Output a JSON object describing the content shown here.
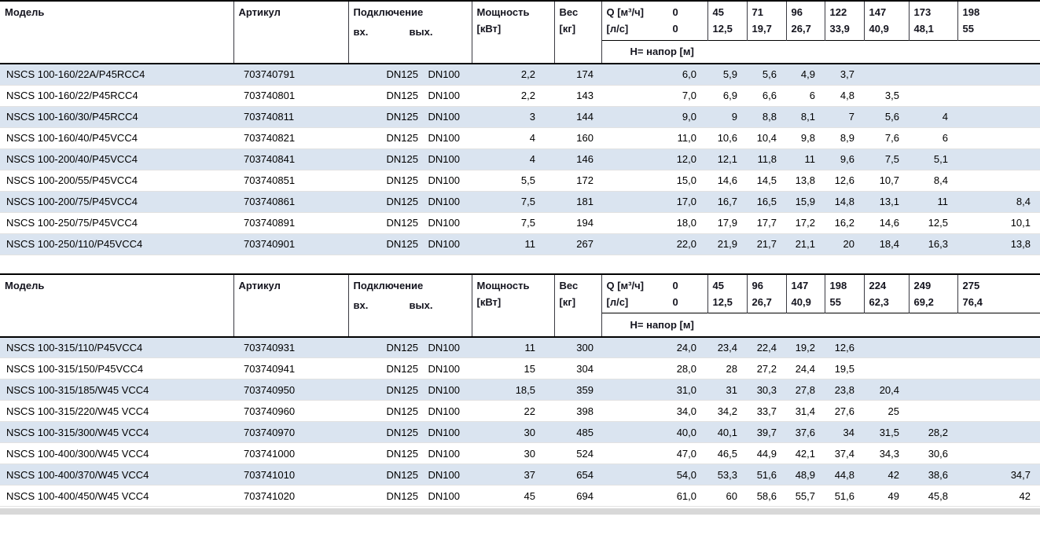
{
  "page": {
    "background": "#ffffff",
    "stripe_color": "#dae4f0"
  },
  "tables": [
    {
      "headers": {
        "model": "Модель",
        "article": "Артикул",
        "connection": "Подключение",
        "conn_in": "вх.",
        "conn_out": "вых.",
        "power": "Мощность",
        "power_unit": "[кВт]",
        "weight": "Вес",
        "weight_unit": "[кг]",
        "q_m3h": "Q [м³/ч]",
        "q_zero_m3h": "0",
        "q_ls": "[л/с]",
        "q_zero_ls": "0",
        "head_label": "Н= напор [м]"
      },
      "flow_m3h": [
        "45",
        "71",
        "96",
        "122",
        "147",
        "173",
        "198"
      ],
      "flow_ls": [
        "12,5",
        "19,7",
        "26,7",
        "33,9",
        "40,9",
        "48,1",
        "55"
      ],
      "rows": [
        {
          "model": "NSCS 100-160/22A/P45RCC4",
          "article": "703740791",
          "in": "DN125",
          "out": "DN100",
          "power": "2,2",
          "weight": "174",
          "h": [
            "6,0",
            "5,9",
            "5,6",
            "4,9",
            "3,7",
            "",
            "",
            ""
          ]
        },
        {
          "model": "NSCS 100-160/22/P45RCC4",
          "article": "703740801",
          "in": "DN125",
          "out": "DN100",
          "power": "2,2",
          "weight": "143",
          "h": [
            "7,0",
            "6,9",
            "6,6",
            "6",
            "4,8",
            "3,5",
            "",
            ""
          ]
        },
        {
          "model": "NSCS 100-160/30/P45RCC4",
          "article": "703740811",
          "in": "DN125",
          "out": "DN100",
          "power": "3",
          "weight": "144",
          "h": [
            "9,0",
            "9",
            "8,8",
            "8,1",
            "7",
            "5,6",
            "4",
            ""
          ]
        },
        {
          "model": "NSCS 100-160/40/P45VCC4",
          "article": "703740821",
          "in": "DN125",
          "out": "DN100",
          "power": "4",
          "weight": "160",
          "h": [
            "11,0",
            "10,6",
            "10,4",
            "9,8",
            "8,9",
            "7,6",
            "6",
            ""
          ]
        },
        {
          "model": "NSCS 100-200/40/P45VCC4",
          "article": "703740841",
          "in": "DN125",
          "out": "DN100",
          "power": "4",
          "weight": "146",
          "h": [
            "12,0",
            "12,1",
            "11,8",
            "11",
            "9,6",
            "7,5",
            "5,1",
            ""
          ]
        },
        {
          "model": "NSCS 100-200/55/P45VCC4",
          "article": "703740851",
          "in": "DN125",
          "out": "DN100",
          "power": "5,5",
          "weight": "172",
          "h": [
            "15,0",
            "14,6",
            "14,5",
            "13,8",
            "12,6",
            "10,7",
            "8,4",
            ""
          ]
        },
        {
          "model": "NSCS 100-200/75/P45VCC4",
          "article": "703740861",
          "in": "DN125",
          "out": "DN100",
          "power": "7,5",
          "weight": "181",
          "h": [
            "17,0",
            "16,7",
            "16,5",
            "15,9",
            "14,8",
            "13,1",
            "11",
            "8,4"
          ]
        },
        {
          "model": "NSCS 100-250/75/P45VCC4",
          "article": "703740891",
          "in": "DN125",
          "out": "DN100",
          "power": "7,5",
          "weight": "194",
          "h": [
            "18,0",
            "17,9",
            "17,7",
            "17,2",
            "16,2",
            "14,6",
            "12,5",
            "10,1"
          ]
        },
        {
          "model": "NSCS 100-250/110/P45VCC4",
          "article": "703740901",
          "in": "DN125",
          "out": "DN100",
          "power": "11",
          "weight": "267",
          "h": [
            "22,0",
            "21,9",
            "21,7",
            "21,1",
            "20",
            "18,4",
            "16,3",
            "13,8"
          ]
        }
      ]
    },
    {
      "headers": {
        "model": "Модель",
        "article": "Артикул",
        "connection": "Подключение",
        "conn_in": "вх.",
        "conn_out": "вых.",
        "power": "Мощность",
        "power_unit": "[кВт]",
        "weight": "Вес",
        "weight_unit": "[кг]",
        "q_m3h": "Q [м³/ч]",
        "q_zero_m3h": "0",
        "q_ls": "[л/с]",
        "q_zero_ls": "0",
        "head_label": "Н= напор [м]"
      },
      "flow_m3h": [
        "45",
        "96",
        "147",
        "198",
        "224",
        "249",
        "275"
      ],
      "flow_ls": [
        "12,5",
        "26,7",
        "40,9",
        "55",
        "62,3",
        "69,2",
        "76,4"
      ],
      "rows": [
        {
          "model": "NSCS 100-315/110/P45VCC4",
          "article": "703740931",
          "in": "DN125",
          "out": "DN100",
          "power": "11",
          "weight": "300",
          "h": [
            "24,0",
            "23,4",
            "22,4",
            "19,2",
            "12,6",
            "",
            "",
            ""
          ]
        },
        {
          "model": "NSCS 100-315/150/P45VCC4",
          "article": "703740941",
          "in": "DN125",
          "out": "DN100",
          "power": "15",
          "weight": "304",
          "h": [
            "28,0",
            "28",
            "27,2",
            "24,4",
            "19,5",
            "",
            "",
            ""
          ]
        },
        {
          "model": "NSCS 100-315/185/W45 VCC4",
          "article": "703740950",
          "in": "DN125",
          "out": "DN100",
          "power": "18,5",
          "weight": "359",
          "h": [
            "31,0",
            "31",
            "30,3",
            "27,8",
            "23,8",
            "20,4",
            "",
            ""
          ]
        },
        {
          "model": "NSCS 100-315/220/W45 VCC4",
          "article": "703740960",
          "in": "DN125",
          "out": "DN100",
          "power": "22",
          "weight": "398",
          "h": [
            "34,0",
            "34,2",
            "33,7",
            "31,4",
            "27,6",
            "25",
            "",
            ""
          ]
        },
        {
          "model": "NSCS 100-315/300/W45 VCC4",
          "article": "703740970",
          "in": "DN125",
          "out": "DN100",
          "power": "30",
          "weight": "485",
          "h": [
            "40,0",
            "40,1",
            "39,7",
            "37,6",
            "34",
            "31,5",
            "28,2",
            ""
          ]
        },
        {
          "model": "NSCS 100-400/300/W45 VCC4",
          "article": "703741000",
          "in": "DN125",
          "out": "DN100",
          "power": "30",
          "weight": "524",
          "h": [
            "47,0",
            "46,5",
            "44,9",
            "42,1",
            "37,4",
            "34,3",
            "30,6",
            ""
          ]
        },
        {
          "model": "NSCS 100-400/370/W45 VCC4",
          "article": "703741010",
          "in": "DN125",
          "out": "DN100",
          "power": "37",
          "weight": "654",
          "h": [
            "54,0",
            "53,3",
            "51,6",
            "48,9",
            "44,8",
            "42",
            "38,6",
            "34,7"
          ]
        },
        {
          "model": "NSCS 100-400/450/W45 VCC4",
          "article": "703741020",
          "in": "DN125",
          "out": "DN100",
          "power": "45",
          "weight": "694",
          "h": [
            "61,0",
            "60",
            "58,6",
            "55,7",
            "51,6",
            "49",
            "45,8",
            "42"
          ]
        }
      ]
    }
  ]
}
